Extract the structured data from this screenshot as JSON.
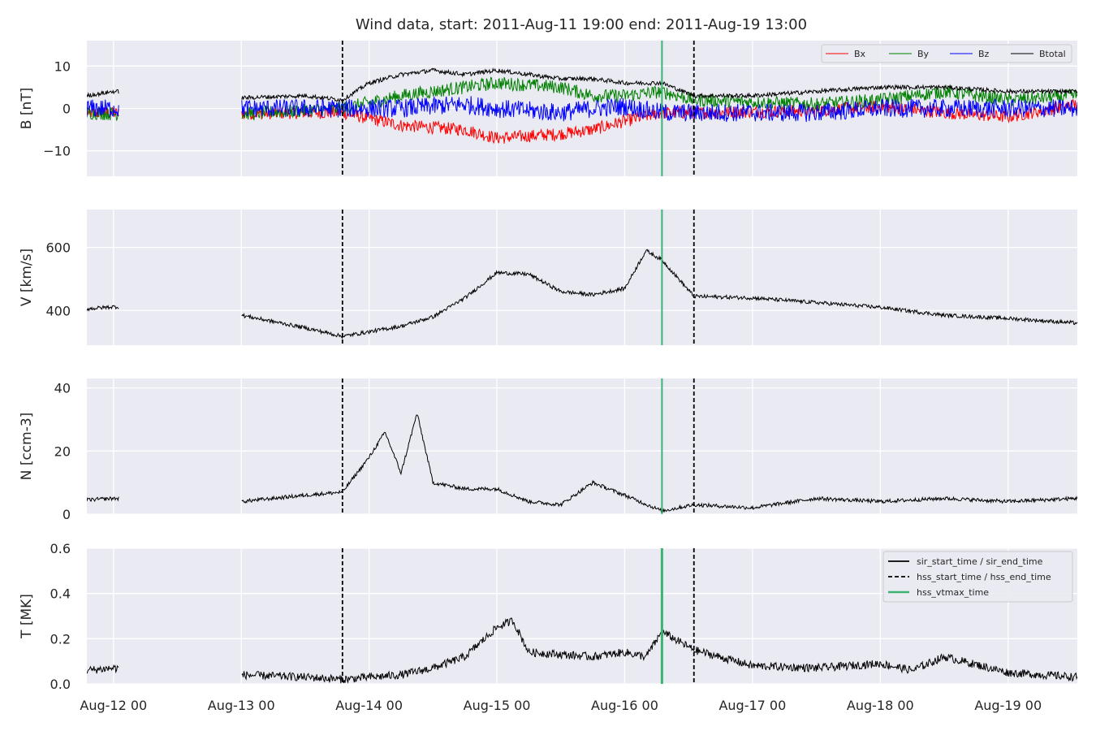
{
  "chart_data": {
    "type": "line",
    "title": "Wind data, start: 2011-Aug-11 19:00  end: 2011-Aug-19 13:00",
    "x_ticks": [
      "Aug-12 00",
      "Aug-13 00",
      "Aug-14 00",
      "Aug-15 00",
      "Aug-16 00",
      "Aug-17 00",
      "Aug-18 00",
      "Aug-19 00"
    ],
    "x_range": [
      "2011-08-11 19:00",
      "2011-08-19 13:00"
    ],
    "events": {
      "hss_start_time": "2011-08-13 19:00",
      "hss_end_time": "2011-08-16 13:00",
      "hss_vtmax_time": "2011-08-16 07:00"
    },
    "data_gap": [
      "2011-08-12 00:00",
      "2011-08-13 00:00"
    ],
    "panels": [
      {
        "id": "B",
        "ylabel": "B [nT]",
        "ylim": [
          -16,
          16
        ],
        "yticks": [
          -10,
          0,
          10
        ],
        "ytick_labels": [
          "−10",
          "0",
          "10"
        ],
        "legend": "top-right",
        "series": [
          {
            "name": "Bx",
            "color": "#ff0000",
            "noise": 1.5,
            "points": [
              [
                "2011-08-11 19:00",
                -1
              ],
              [
                "2011-08-12 12:00",
                -1.5
              ],
              [
                "2011-08-13 12:00",
                -1
              ],
              [
                "2011-08-13 19:00",
                -1
              ],
              [
                "2011-08-14 06:00",
                -4
              ],
              [
                "2011-08-14 18:00",
                -5
              ],
              [
                "2011-08-15 00:00",
                -7
              ],
              [
                "2011-08-15 12:00",
                -6
              ],
              [
                "2011-08-15 18:00",
                -5
              ],
              [
                "2011-08-16 00:00",
                -3
              ],
              [
                "2011-08-16 07:00",
                -1
              ],
              [
                "2011-08-16 13:00",
                -1
              ],
              [
                "2011-08-17 12:00",
                -0.5
              ],
              [
                "2011-08-18 00:00",
                0.5
              ],
              [
                "2011-08-18 12:00",
                -1
              ],
              [
                "2011-08-19 00:00",
                -2
              ],
              [
                "2011-08-19 13:00",
                1
              ]
            ]
          },
          {
            "name": "By",
            "color": "#008000",
            "noise": 1.6,
            "points": [
              [
                "2011-08-11 19:00",
                -1
              ],
              [
                "2011-08-12 12:00",
                -2
              ],
              [
                "2011-08-13 12:00",
                -0.5
              ],
              [
                "2011-08-13 19:00",
                0
              ],
              [
                "2011-08-14 06:00",
                3
              ],
              [
                "2011-08-14 18:00",
                5
              ],
              [
                "2011-08-15 00:00",
                6
              ],
              [
                "2011-08-15 12:00",
                5
              ],
              [
                "2011-08-15 18:00",
                3
              ],
              [
                "2011-08-16 00:00",
                3
              ],
              [
                "2011-08-16 07:00",
                4
              ],
              [
                "2011-08-16 13:00",
                2
              ],
              [
                "2011-08-17 12:00",
                1
              ],
              [
                "2011-08-18 00:00",
                2
              ],
              [
                "2011-08-18 12:00",
                4
              ],
              [
                "2011-08-19 00:00",
                2
              ],
              [
                "2011-08-19 13:00",
                3
              ]
            ]
          },
          {
            "name": "Bz",
            "color": "#0000ff",
            "noise": 2.2,
            "points": [
              [
                "2011-08-11 19:00",
                0
              ],
              [
                "2011-08-12 12:00",
                0
              ],
              [
                "2011-08-13 12:00",
                0
              ],
              [
                "2011-08-13 19:00",
                0
              ],
              [
                "2011-08-14 06:00",
                0
              ],
              [
                "2011-08-14 18:00",
                1
              ],
              [
                "2011-08-15 00:00",
                0
              ],
              [
                "2011-08-15 12:00",
                -1
              ],
              [
                "2011-08-15 18:00",
                0
              ],
              [
                "2011-08-16 00:00",
                0.5
              ],
              [
                "2011-08-16 07:00",
                -1
              ],
              [
                "2011-08-16 13:00",
                -1
              ],
              [
                "2011-08-17 12:00",
                -1
              ],
              [
                "2011-08-18 00:00",
                0
              ],
              [
                "2011-08-18 12:00",
                0
              ],
              [
                "2011-08-19 00:00",
                0
              ],
              [
                "2011-08-19 13:00",
                0
              ]
            ]
          },
          {
            "name": "Btotal",
            "color": "#000000",
            "noise": 0.5,
            "points": [
              [
                "2011-08-11 19:00",
                3
              ],
              [
                "2011-08-12 00:00",
                4
              ],
              [
                "2011-08-12 12:00",
                3.5
              ],
              [
                "2011-08-13 00:00",
                2.5
              ],
              [
                "2011-08-13 12:00",
                3
              ],
              [
                "2011-08-13 19:00",
                2
              ],
              [
                "2011-08-14 00:00",
                6
              ],
              [
                "2011-08-14 06:00",
                8
              ],
              [
                "2011-08-14 12:00",
                9
              ],
              [
                "2011-08-14 18:00",
                8
              ],
              [
                "2011-08-15 00:00",
                9
              ],
              [
                "2011-08-15 06:00",
                8
              ],
              [
                "2011-08-15 12:00",
                7
              ],
              [
                "2011-08-15 18:00",
                7
              ],
              [
                "2011-08-16 00:00",
                6
              ],
              [
                "2011-08-16 07:00",
                6
              ],
              [
                "2011-08-16 13:00",
                3
              ],
              [
                "2011-08-17 00:00",
                3
              ],
              [
                "2011-08-17 12:00",
                4
              ],
              [
                "2011-08-18 00:00",
                5
              ],
              [
                "2011-08-18 12:00",
                5
              ],
              [
                "2011-08-19 00:00",
                4
              ],
              [
                "2011-08-19 13:00",
                4
              ]
            ]
          }
        ]
      },
      {
        "id": "V",
        "ylabel": "V [km/s]",
        "ylim": [
          290,
          720
        ],
        "yticks": [
          400,
          600
        ],
        "ytick_labels": [
          "400",
          "600"
        ],
        "series": [
          {
            "name": "V",
            "color": "#000000",
            "noise": 6,
            "points": [
              [
                "2011-08-11 19:00",
                405
              ],
              [
                "2011-08-12 00:00",
                412
              ],
              [
                "2011-08-13 00:00",
                385
              ],
              [
                "2011-08-13 12:00",
                345
              ],
              [
                "2011-08-13 19:00",
                318
              ],
              [
                "2011-08-14 06:00",
                350
              ],
              [
                "2011-08-14 12:00",
                380
              ],
              [
                "2011-08-14 18:00",
                440
              ],
              [
                "2011-08-15 00:00",
                520
              ],
              [
                "2011-08-15 06:00",
                515
              ],
              [
                "2011-08-15 12:00",
                460
              ],
              [
                "2011-08-15 18:00",
                450
              ],
              [
                "2011-08-16 00:00",
                470
              ],
              [
                "2011-08-16 04:00",
                590
              ],
              [
                "2011-08-16 07:00",
                560
              ],
              [
                "2011-08-16 13:00",
                445
              ],
              [
                "2011-08-17 00:00",
                440
              ],
              [
                "2011-08-17 12:00",
                425
              ],
              [
                "2011-08-18 00:00",
                410
              ],
              [
                "2011-08-18 12:00",
                385
              ],
              [
                "2011-08-19 00:00",
                375
              ],
              [
                "2011-08-19 13:00",
                360
              ]
            ]
          }
        ]
      },
      {
        "id": "N",
        "ylabel": "N [ccm-3]",
        "ylim": [
          0,
          43
        ],
        "yticks": [
          0,
          20,
          40
        ],
        "ytick_labels": [
          "0",
          "20",
          "40"
        ],
        "series": [
          {
            "name": "N",
            "color": "#000000",
            "noise": 0.6,
            "points": [
              [
                "2011-08-11 19:00",
                4.5
              ],
              [
                "2011-08-12 00:00",
                5
              ],
              [
                "2011-08-13 00:00",
                4
              ],
              [
                "2011-08-13 12:00",
                6
              ],
              [
                "2011-08-13 19:00",
                7
              ],
              [
                "2011-08-14 00:00",
                18
              ],
              [
                "2011-08-14 03:00",
                26
              ],
              [
                "2011-08-14 06:00",
                13
              ],
              [
                "2011-08-14 09:00",
                32
              ],
              [
                "2011-08-14 12:00",
                10
              ],
              [
                "2011-08-14 18:00",
                8
              ],
              [
                "2011-08-15 00:00",
                8
              ],
              [
                "2011-08-15 06:00",
                4
              ],
              [
                "2011-08-15 12:00",
                3
              ],
              [
                "2011-08-15 18:00",
                10
              ],
              [
                "2011-08-16 00:00",
                6
              ],
              [
                "2011-08-16 07:00",
                1
              ],
              [
                "2011-08-16 13:00",
                3
              ],
              [
                "2011-08-17 00:00",
                2
              ],
              [
                "2011-08-17 12:00",
                5
              ],
              [
                "2011-08-18 00:00",
                4
              ],
              [
                "2011-08-18 12:00",
                5
              ],
              [
                "2011-08-19 00:00",
                4
              ],
              [
                "2011-08-19 13:00",
                5
              ]
            ]
          }
        ]
      },
      {
        "id": "T",
        "ylabel": "T [MK]",
        "ylim": [
          0,
          0.6
        ],
        "yticks": [
          0.0,
          0.2,
          0.4,
          0.6
        ],
        "ytick_labels": [
          "0.0",
          "0.2",
          "0.4",
          "0.6"
        ],
        "legend": "top-right",
        "series": [
          {
            "name": "T",
            "color": "#000000",
            "noise": 0.018,
            "points": [
              [
                "2011-08-11 19:00",
                0.06
              ],
              [
                "2011-08-12 00:00",
                0.07
              ],
              [
                "2011-08-13 00:00",
                0.04
              ],
              [
                "2011-08-13 12:00",
                0.03
              ],
              [
                "2011-08-13 19:00",
                0.02
              ],
              [
                "2011-08-14 06:00",
                0.04
              ],
              [
                "2011-08-14 12:00",
                0.07
              ],
              [
                "2011-08-14 18:00",
                0.12
              ],
              [
                "2011-08-15 00:00",
                0.25
              ],
              [
                "2011-08-15 03:00",
                0.28
              ],
              [
                "2011-08-15 06:00",
                0.14
              ],
              [
                "2011-08-15 12:00",
                0.13
              ],
              [
                "2011-08-15 18:00",
                0.12
              ],
              [
                "2011-08-16 00:00",
                0.14
              ],
              [
                "2011-08-16 04:00",
                0.12
              ],
              [
                "2011-08-16 07:00",
                0.23
              ],
              [
                "2011-08-16 13:00",
                0.15
              ],
              [
                "2011-08-17 00:00",
                0.08
              ],
              [
                "2011-08-17 12:00",
                0.07
              ],
              [
                "2011-08-18 00:00",
                0.09
              ],
              [
                "2011-08-18 06:00",
                0.06
              ],
              [
                "2011-08-18 12:00",
                0.12
              ],
              [
                "2011-08-19 00:00",
                0.05
              ],
              [
                "2011-08-19 13:00",
                0.03
              ]
            ]
          }
        ]
      }
    ],
    "legend_T": [
      {
        "label": "sir_start_time / sir_end_time",
        "style": "solid",
        "color": "#000000"
      },
      {
        "label": "hss_start_time / hss_end_time",
        "style": "dashed",
        "color": "#000000"
      },
      {
        "label": "hss_vtmax_time",
        "style": "solid",
        "color": "#3cb371"
      }
    ]
  }
}
